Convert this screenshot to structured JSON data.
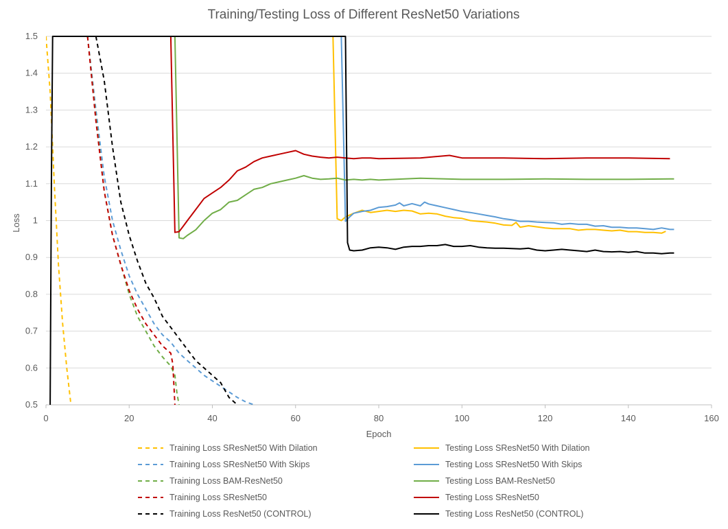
{
  "chart_data": {
    "type": "line",
    "title": "Training/Testing Loss of Different ResNet50 Variations",
    "xlabel": "Epoch",
    "ylabel": "Loss",
    "xlim": [
      0,
      160
    ],
    "ylim": [
      0.5,
      1.5
    ],
    "xticks": [
      0,
      20,
      40,
      60,
      80,
      100,
      120,
      140,
      160
    ],
    "yticks": [
      0.5,
      0.6,
      0.7,
      0.8,
      0.9,
      1.0,
      1.1,
      1.2,
      1.3,
      1.4,
      1.5
    ],
    "ytick_labels": [
      "0.5",
      "0.6",
      "0.7",
      "0.8",
      "0.9",
      "1",
      "1.1",
      "1.2",
      "1.3",
      "1.4",
      "1.5"
    ],
    "grid": "horizontal",
    "legend_position": "bottom",
    "series": [
      {
        "name": "Training Loss SResNet50 With Dilation",
        "color": "#FFC000",
        "style": "dashed",
        "points": [
          [
            0,
            1.5
          ],
          [
            1,
            1.35
          ],
          [
            2,
            1.1
          ],
          [
            3,
            0.88
          ],
          [
            4,
            0.72
          ],
          [
            5,
            0.6
          ],
          [
            6,
            0.5
          ]
        ]
      },
      {
        "name": "Testing Loss SResNet50 With Dilation",
        "color": "#FFC000",
        "style": "solid",
        "points": [
          [
            69,
            1.5
          ],
          [
            70,
            1.005
          ],
          [
            71,
            1.0
          ],
          [
            72,
            1.01
          ],
          [
            74,
            1.02
          ],
          [
            76,
            1.028
          ],
          [
            78,
            1.022
          ],
          [
            80,
            1.025
          ],
          [
            82,
            1.028
          ],
          [
            84,
            1.025
          ],
          [
            86,
            1.028
          ],
          [
            88,
            1.026
          ],
          [
            90,
            1.018
          ],
          [
            92,
            1.02
          ],
          [
            94,
            1.018
          ],
          [
            96,
            1.012
          ],
          [
            98,
            1.008
          ],
          [
            100,
            1.006
          ],
          [
            102,
            1.0
          ],
          [
            104,
            0.998
          ],
          [
            106,
            0.996
          ],
          [
            108,
            0.993
          ],
          [
            110,
            0.988
          ],
          [
            112,
            0.987
          ],
          [
            113,
            0.995
          ],
          [
            114,
            0.982
          ],
          [
            116,
            0.986
          ],
          [
            118,
            0.983
          ],
          [
            120,
            0.98
          ],
          [
            122,
            0.978
          ],
          [
            124,
            0.978
          ],
          [
            126,
            0.978
          ],
          [
            128,
            0.974
          ],
          [
            130,
            0.976
          ],
          [
            132,
            0.976
          ],
          [
            134,
            0.974
          ],
          [
            136,
            0.972
          ],
          [
            138,
            0.974
          ],
          [
            140,
            0.97
          ],
          [
            142,
            0.97
          ],
          [
            144,
            0.968
          ],
          [
            146,
            0.968
          ],
          [
            148,
            0.966
          ],
          [
            149,
            0.971
          ]
        ]
      },
      {
        "name": "Training Loss SResNet50 With Skips",
        "color": "#5B9BD5",
        "style": "dashed",
        "points": [
          [
            10,
            1.5
          ],
          [
            12,
            1.3
          ],
          [
            14,
            1.12
          ],
          [
            16,
            1.0
          ],
          [
            18,
            0.92
          ],
          [
            20,
            0.85
          ],
          [
            22,
            0.8
          ],
          [
            24,
            0.76
          ],
          [
            26,
            0.72
          ],
          [
            28,
            0.69
          ],
          [
            30,
            0.67
          ],
          [
            32,
            0.64
          ],
          [
            34,
            0.62
          ],
          [
            36,
            0.6
          ],
          [
            38,
            0.58
          ],
          [
            40,
            0.565
          ],
          [
            42,
            0.55
          ],
          [
            44,
            0.535
          ],
          [
            46,
            0.52
          ],
          [
            48,
            0.508
          ],
          [
            50,
            0.5
          ]
        ]
      },
      {
        "name": "Testing Loss SResNet50 With Skips",
        "color": "#5B9BD5",
        "style": "solid",
        "points": [
          [
            71,
            1.5
          ],
          [
            72,
            0.998
          ],
          [
            73,
            1.01
          ],
          [
            74,
            1.02
          ],
          [
            76,
            1.025
          ],
          [
            78,
            1.028
          ],
          [
            80,
            1.036
          ],
          [
            82,
            1.038
          ],
          [
            84,
            1.042
          ],
          [
            85,
            1.048
          ],
          [
            86,
            1.04
          ],
          [
            88,
            1.046
          ],
          [
            90,
            1.04
          ],
          [
            91,
            1.05
          ],
          [
            92,
            1.045
          ],
          [
            94,
            1.04
          ],
          [
            96,
            1.035
          ],
          [
            98,
            1.03
          ],
          [
            100,
            1.025
          ],
          [
            102,
            1.022
          ],
          [
            104,
            1.018
          ],
          [
            106,
            1.014
          ],
          [
            108,
            1.01
          ],
          [
            110,
            1.005
          ],
          [
            112,
            1.002
          ],
          [
            114,
            0.998
          ],
          [
            116,
            0.998
          ],
          [
            118,
            0.996
          ],
          [
            120,
            0.995
          ],
          [
            122,
            0.994
          ],
          [
            124,
            0.99
          ],
          [
            126,
            0.992
          ],
          [
            128,
            0.99
          ],
          [
            130,
            0.99
          ],
          [
            132,
            0.985
          ],
          [
            134,
            0.986
          ],
          [
            136,
            0.982
          ],
          [
            138,
            0.982
          ],
          [
            140,
            0.98
          ],
          [
            142,
            0.98
          ],
          [
            144,
            0.978
          ],
          [
            146,
            0.976
          ],
          [
            148,
            0.98
          ],
          [
            150,
            0.976
          ],
          [
            151,
            0.976
          ]
        ]
      },
      {
        "name": "Training Loss BAM-ResNet50",
        "color": "#70AD47",
        "style": "dashed",
        "points": [
          [
            10,
            1.5
          ],
          [
            12,
            1.28
          ],
          [
            14,
            1.08
          ],
          [
            16,
            0.96
          ],
          [
            18,
            0.88
          ],
          [
            20,
            0.8
          ],
          [
            22,
            0.74
          ],
          [
            24,
            0.7
          ],
          [
            26,
            0.66
          ],
          [
            28,
            0.63
          ],
          [
            30,
            0.605
          ],
          [
            31,
            0.58
          ],
          [
            31.5,
            0.53
          ],
          [
            32,
            0.5
          ]
        ]
      },
      {
        "name": "Testing Loss BAM-ResNet50",
        "color": "#70AD47",
        "style": "solid",
        "points": [
          [
            31,
            1.5
          ],
          [
            32,
            0.953
          ],
          [
            33,
            0.951
          ],
          [
            34,
            0.96
          ],
          [
            36,
            0.975
          ],
          [
            38,
            1.0
          ],
          [
            40,
            1.02
          ],
          [
            42,
            1.03
          ],
          [
            44,
            1.05
          ],
          [
            46,
            1.055
          ],
          [
            48,
            1.07
          ],
          [
            50,
            1.085
          ],
          [
            52,
            1.09
          ],
          [
            54,
            1.1
          ],
          [
            56,
            1.105
          ],
          [
            58,
            1.11
          ],
          [
            60,
            1.115
          ],
          [
            62,
            1.122
          ],
          [
            64,
            1.115
          ],
          [
            66,
            1.112
          ],
          [
            68,
            1.113
          ],
          [
            70,
            1.115
          ],
          [
            72,
            1.11
          ],
          [
            74,
            1.112
          ],
          [
            76,
            1.11
          ],
          [
            78,
            1.112
          ],
          [
            80,
            1.11
          ],
          [
            90,
            1.115
          ],
          [
            100,
            1.112
          ],
          [
            110,
            1.112
          ],
          [
            120,
            1.113
          ],
          [
            130,
            1.112
          ],
          [
            140,
            1.112
          ],
          [
            150,
            1.113
          ],
          [
            151,
            1.113
          ]
        ]
      },
      {
        "name": "Training Loss SResNet50",
        "color": "#C00000",
        "style": "dashed",
        "points": [
          [
            10,
            1.5
          ],
          [
            12,
            1.27
          ],
          [
            14,
            1.08
          ],
          [
            16,
            0.96
          ],
          [
            18,
            0.88
          ],
          [
            20,
            0.81
          ],
          [
            22,
            0.76
          ],
          [
            24,
            0.72
          ],
          [
            26,
            0.69
          ],
          [
            28,
            0.66
          ],
          [
            30,
            0.64
          ],
          [
            30.5,
            0.61
          ],
          [
            31,
            0.5
          ]
        ]
      },
      {
        "name": "Testing Loss SResNet50",
        "color": "#C00000",
        "style": "solid",
        "points": [
          [
            30,
            1.5
          ],
          [
            31,
            0.968
          ],
          [
            32,
            0.97
          ],
          [
            33,
            0.985
          ],
          [
            34,
            1.0
          ],
          [
            36,
            1.03
          ],
          [
            38,
            1.06
          ],
          [
            40,
            1.075
          ],
          [
            42,
            1.09
          ],
          [
            44,
            1.11
          ],
          [
            46,
            1.135
          ],
          [
            48,
            1.145
          ],
          [
            50,
            1.16
          ],
          [
            52,
            1.17
          ],
          [
            54,
            1.175
          ],
          [
            56,
            1.18
          ],
          [
            58,
            1.185
          ],
          [
            60,
            1.19
          ],
          [
            62,
            1.18
          ],
          [
            64,
            1.175
          ],
          [
            66,
            1.172
          ],
          [
            68,
            1.17
          ],
          [
            70,
            1.172
          ],
          [
            72,
            1.17
          ],
          [
            74,
            1.168
          ],
          [
            76,
            1.17
          ],
          [
            78,
            1.17
          ],
          [
            80,
            1.168
          ],
          [
            90,
            1.17
          ],
          [
            97,
            1.177
          ],
          [
            100,
            1.17
          ],
          [
            110,
            1.17
          ],
          [
            120,
            1.168
          ],
          [
            130,
            1.17
          ],
          [
            140,
            1.17
          ],
          [
            150,
            1.168
          ]
        ]
      },
      {
        "name": "Training Loss ResNet50 (CONTROL)",
        "color": "#000000",
        "style": "dashed",
        "points": [
          [
            12,
            1.5
          ],
          [
            14,
            1.38
          ],
          [
            16,
            1.2
          ],
          [
            18,
            1.05
          ],
          [
            20,
            0.96
          ],
          [
            22,
            0.89
          ],
          [
            24,
            0.83
          ],
          [
            26,
            0.79
          ],
          [
            28,
            0.74
          ],
          [
            30,
            0.71
          ],
          [
            32,
            0.68
          ],
          [
            34,
            0.65
          ],
          [
            36,
            0.62
          ],
          [
            38,
            0.6
          ],
          [
            40,
            0.58
          ],
          [
            42,
            0.56
          ],
          [
            44,
            0.52
          ],
          [
            46,
            0.5
          ]
        ]
      },
      {
        "name": "Testing Loss  ResNet50 (CONTROL)",
        "color": "#000000",
        "style": "solid",
        "points": [
          [
            1,
            0.5
          ],
          [
            1.3,
            1.1
          ],
          [
            1.6,
            1.5
          ],
          [
            72,
            1.5
          ],
          [
            72.5,
            0.94
          ],
          [
            73,
            0.92
          ],
          [
            74,
            0.918
          ],
          [
            76,
            0.92
          ],
          [
            78,
            0.926
          ],
          [
            80,
            0.928
          ],
          [
            82,
            0.926
          ],
          [
            84,
            0.922
          ],
          [
            86,
            0.928
          ],
          [
            88,
            0.93
          ],
          [
            90,
            0.93
          ],
          [
            92,
            0.932
          ],
          [
            94,
            0.932
          ],
          [
            96,
            0.935
          ],
          [
            98,
            0.93
          ],
          [
            100,
            0.93
          ],
          [
            102,
            0.932
          ],
          [
            104,
            0.928
          ],
          [
            106,
            0.926
          ],
          [
            108,
            0.925
          ],
          [
            110,
            0.925
          ],
          [
            112,
            0.924
          ],
          [
            114,
            0.923
          ],
          [
            116,
            0.925
          ],
          [
            118,
            0.92
          ],
          [
            120,
            0.918
          ],
          [
            122,
            0.92
          ],
          [
            124,
            0.922
          ],
          [
            126,
            0.92
          ],
          [
            128,
            0.918
          ],
          [
            130,
            0.916
          ],
          [
            132,
            0.92
          ],
          [
            134,
            0.916
          ],
          [
            136,
            0.915
          ],
          [
            138,
            0.916
          ],
          [
            140,
            0.914
          ],
          [
            142,
            0.916
          ],
          [
            144,
            0.912
          ],
          [
            146,
            0.912
          ],
          [
            148,
            0.91
          ],
          [
            150,
            0.912
          ],
          [
            151,
            0.912
          ]
        ]
      }
    ]
  }
}
